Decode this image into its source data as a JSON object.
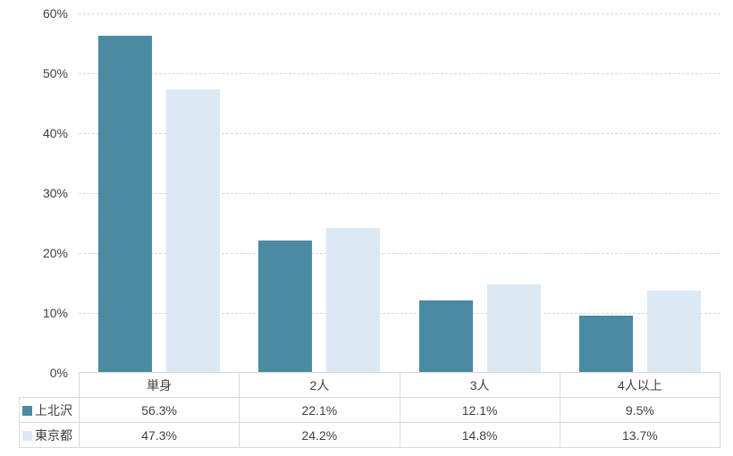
{
  "chart_data": {
    "type": "bar",
    "title": "",
    "categories": [
      "単身",
      "2人",
      "3人",
      "4人以上"
    ],
    "series": [
      {
        "name": "上北沢",
        "color": "#4A8BA2",
        "values": [
          56.3,
          22.1,
          12.1,
          9.5
        ],
        "labels": [
          "56.3%",
          "22.1%",
          "12.1%",
          "9.5%"
        ]
      },
      {
        "name": "東京都",
        "color": "#DCE8F4",
        "values": [
          47.3,
          24.2,
          14.8,
          13.7
        ],
        "labels": [
          "47.3%",
          "24.2%",
          "14.8%",
          "13.7%"
        ]
      }
    ],
    "xlabel": "",
    "ylabel": "",
    "ylim": [
      0,
      60
    ],
    "yticks": [
      0,
      10,
      20,
      30,
      40,
      50,
      60
    ],
    "ytick_labels": [
      "0%",
      "10%",
      "20%",
      "30%",
      "40%",
      "50%",
      "60%"
    ],
    "grid": "horizontal-dashed",
    "gridline_color": "#d9d9d9",
    "legend_position": "table-left",
    "table_border_color": "#d9d9d9",
    "text_color": "#404040",
    "background": "#ffffff"
  }
}
